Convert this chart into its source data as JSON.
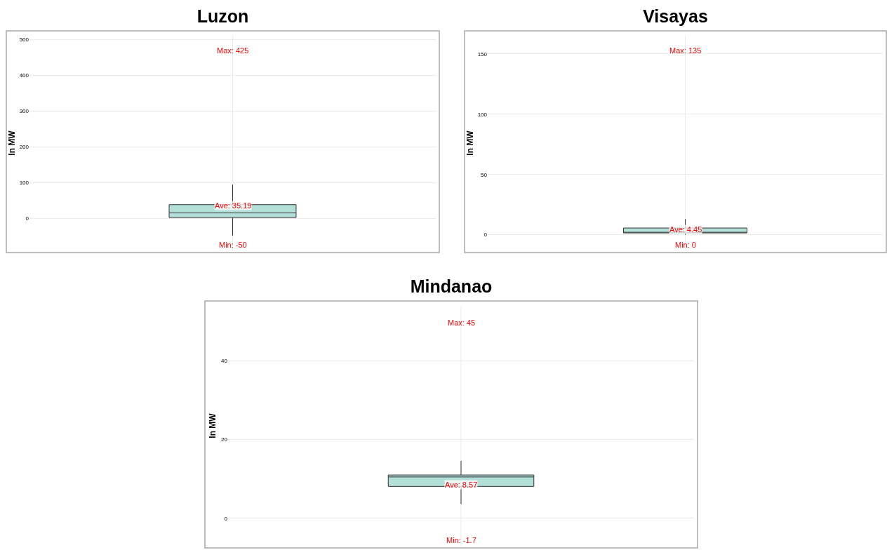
{
  "chart_data": [
    {
      "type": "box",
      "title": "Luzon",
      "ylabel": "In MW",
      "categories": [
        null
      ],
      "ylim": [
        -90,
        510
      ],
      "yticks": [
        0,
        100,
        200,
        300,
        400,
        500
      ],
      "grid": true,
      "tick_labels": "y",
      "series": [
        {
          "color": "#b2e0d8",
          "boxes": [
            {
              "low": -48,
              "q1": 2,
              "median": 15,
              "q3": 38,
              "high": 94
            }
          ]
        }
      ],
      "annotations": [
        "Max: 425",
        {
          "text": "Ave: 35.19",
          "y": 35.19
        },
        "Min: -50"
      ]
    },
    {
      "type": "box",
      "title": "Visayas",
      "ylabel": "In MW",
      "categories": [
        null
      ],
      "ylim": [
        -13,
        165
      ],
      "yticks": [
        0,
        50,
        100,
        150
      ],
      "grid": true,
      "tick_labels": "y",
      "series": [
        {
          "color": "#b2e0d8",
          "boxes": [
            {
              "low": 0,
              "q1": 1.5,
              "median": 2,
              "q3": 5.6,
              "high": 13
            }
          ]
        }
      ],
      "annotations": [
        "Max: 135",
        {
          "text": "Ave: 4.45",
          "y": 4.45
        },
        "Min: 0"
      ]
    },
    {
      "type": "box",
      "title": "Mindanao",
      "ylabel": "In MW",
      "categories": [
        null
      ],
      "ylim": [
        -7,
        54
      ],
      "yticks": [
        0,
        20,
        40
      ],
      "grid": true,
      "tick_labels": "y",
      "series": [
        {
          "color": "#b2e0d8",
          "boxes": [
            {
              "low": 3.6,
              "q1": 8.1,
              "median": 10.5,
              "q3": 11,
              "high": 14.6
            }
          ]
        }
      ],
      "annotations": [
        "Max: 45",
        {
          "text": "Ave: 8.57",
          "y": 8.57
        },
        "Min: -1.7"
      ]
    }
  ]
}
